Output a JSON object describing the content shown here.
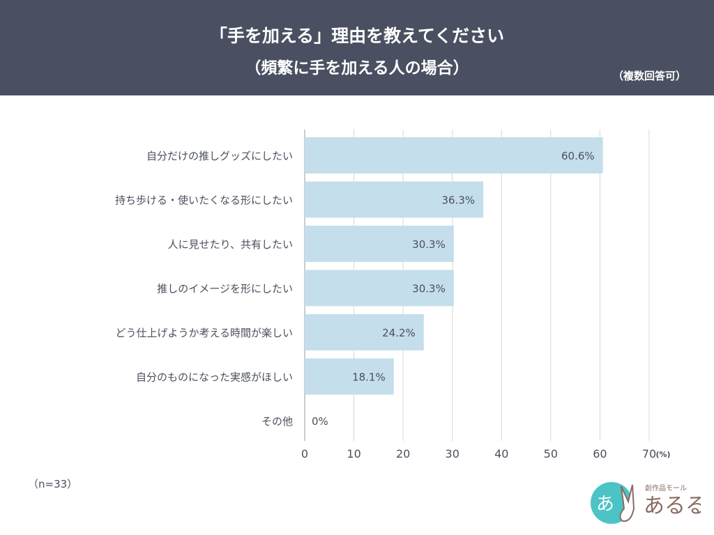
{
  "header": {
    "title": "「手を加える」理由を教えてください",
    "subtitle": "（頻繁に手を加える人の場合）",
    "note": "（複数回答可）"
  },
  "sample": "（n=33）",
  "logo": {
    "text": "創作品モール あるる"
  },
  "colors": {
    "header": "#4a5061",
    "bar": "#c5deeb",
    "grid": "#d8d8d8",
    "text": "#4a4f5c"
  },
  "chart_data": {
    "type": "bar",
    "orientation": "horizontal",
    "categories": [
      "自分だけの推しグッズにしたい",
      "持ち歩ける・使いたくなる形にしたい",
      "人に見せたり、共有したい",
      "推しのイメージを形にしたい",
      "どう仕上げようか考える時間が楽しい",
      "自分のものになった実感がほしい",
      "その他"
    ],
    "values": [
      60.6,
      36.3,
      30.3,
      30.3,
      24.2,
      18.1,
      0
    ],
    "data_labels": [
      "60.6%",
      "36.3%",
      "30.3%",
      "30.3%",
      "24.2%",
      "18.1%",
      "0%"
    ],
    "xlim": [
      0,
      70
    ],
    "xticks": [
      0,
      10,
      20,
      30,
      40,
      50,
      60,
      70
    ],
    "xunit": "(%)",
    "grid": true
  }
}
